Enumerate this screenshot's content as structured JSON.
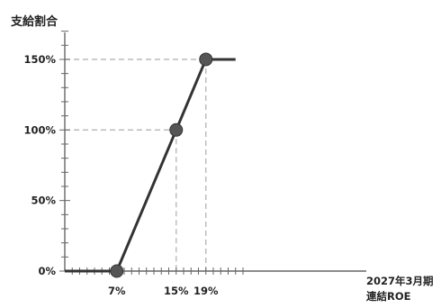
{
  "chart_data": {
    "type": "line",
    "ylabel": "支給割合",
    "xlabel_lines": [
      "2027年3月期",
      "連結ROE"
    ],
    "y_ticks": [
      {
        "value": 0,
        "label": "0%"
      },
      {
        "value": 50,
        "label": "50%"
      },
      {
        "value": 100,
        "label": "100%"
      },
      {
        "value": 150,
        "label": "150%"
      }
    ],
    "x_ticks": [
      {
        "value": 7,
        "label": "7%"
      },
      {
        "value": 15,
        "label": "15%"
      },
      {
        "value": 19,
        "label": "19%"
      }
    ],
    "series": [
      {
        "x": [
          0,
          7,
          15,
          19,
          23
        ],
        "y": [
          0,
          0,
          100,
          150,
          150
        ]
      }
    ],
    "markers": [
      {
        "x": 7,
        "y": 0
      },
      {
        "x": 15,
        "y": 100
      },
      {
        "x": 19,
        "y": 150
      }
    ],
    "reference_lines": {
      "horizontal": [
        100,
        150
      ],
      "vertical": [
        15,
        19
      ]
    },
    "xlim": [
      0,
      24
    ],
    "ylim": [
      0,
      170
    ],
    "grid": false,
    "line_color": "#333333",
    "marker_color": "#555555",
    "axis_color": "#666666",
    "dash_color": "#b5b5b5"
  }
}
